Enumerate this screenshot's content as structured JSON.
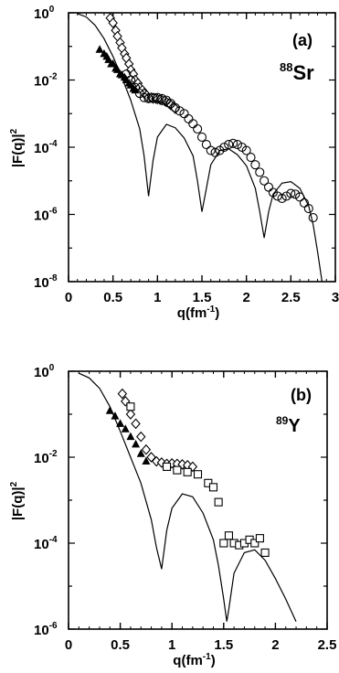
{
  "chart_data": [
    {
      "type": "scatter",
      "panel_label": "(a)",
      "nucleus": {
        "mass": "88",
        "symbol": "Sr"
      },
      "xlabel": {
        "main": "q(fm",
        "sup": "-1",
        "tail": ")"
      },
      "ylabel": {
        "main": "|F(q)|",
        "sup": "2"
      },
      "x_range": [
        0,
        3
      ],
      "y_scale": "log",
      "y_range_exp": [
        -8,
        0
      ],
      "x_ticks": [
        {
          "value": 0,
          "label": "0"
        },
        {
          "value": 0.5,
          "label": "0.5"
        },
        {
          "value": 1,
          "label": "1"
        },
        {
          "value": 1.5,
          "label": "1.5"
        },
        {
          "value": 2,
          "label": "2"
        },
        {
          "value": 2.5,
          "label": "2.5"
        },
        {
          "value": 3,
          "label": "3"
        }
      ],
      "y_ticks": [
        {
          "exp": 0,
          "label": "10",
          "sup": "0"
        },
        {
          "exp": -2,
          "label": "10",
          "sup": "-2"
        },
        {
          "exp": -4,
          "label": "10",
          "sup": "-4"
        },
        {
          "exp": -6,
          "label": "10",
          "sup": "-6"
        },
        {
          "exp": -8,
          "label": "10",
          "sup": "-8"
        }
      ],
      "curve": {
        "x": [
          0.1,
          0.2,
          0.3,
          0.4,
          0.5,
          0.6,
          0.7,
          0.8,
          0.85,
          0.9,
          0.95,
          1.0,
          1.1,
          1.2,
          1.3,
          1.4,
          1.45,
          1.5,
          1.55,
          1.6,
          1.7,
          1.8,
          1.9,
          2.0,
          2.1,
          2.15,
          2.2,
          2.25,
          2.3,
          2.4,
          2.5,
          2.6,
          2.7,
          2.75,
          2.8,
          2.85
        ],
        "y": [
          0.95,
          0.75,
          0.42,
          0.17,
          0.05,
          0.012,
          0.0025,
          0.00035,
          5.5e-05,
          3.5e-06,
          4e-05,
          0.0002,
          0.00048,
          0.00038,
          0.00019,
          5.5e-05,
          1e-05,
          1.2e-06,
          6e-06,
          3e-05,
          8e-05,
          9e-05,
          6e-05,
          2.8e-05,
          6e-06,
          1.2e-06,
          2e-07,
          1.2e-06,
          4e-06,
          8.5e-06,
          9.5e-06,
          6e-06,
          1.8e-06,
          5e-07,
          8e-08,
          1e-08
        ]
      },
      "series": [
        {
          "marker": "triangle",
          "x": [
            0.35,
            0.4,
            0.43,
            0.45,
            0.48,
            0.5,
            0.53,
            0.55,
            0.58,
            0.6,
            0.63,
            0.65,
            0.68,
            0.7,
            0.73,
            0.75
          ],
          "y": [
            0.08,
            0.06,
            0.05,
            0.04,
            0.03,
            0.03,
            0.022,
            0.02,
            0.015,
            0.014,
            0.012,
            0.01,
            0.008,
            0.007,
            0.0055,
            0.005
          ]
        },
        {
          "marker": "diamond",
          "x": [
            0.47,
            0.5,
            0.53,
            0.55,
            0.58,
            0.6,
            0.63,
            0.65,
            0.68,
            0.7,
            0.73,
            0.75,
            0.78,
            0.8,
            0.83,
            0.85,
            0.88,
            0.9,
            0.93,
            0.95,
            0.98,
            1.0,
            1.03,
            1.05,
            1.08,
            1.1,
            1.13,
            1.15,
            1.18,
            1.2
          ],
          "y": [
            0.7,
            0.5,
            0.3,
            0.2,
            0.13,
            0.09,
            0.06,
            0.045,
            0.03,
            0.02,
            0.015,
            0.01,
            0.008,
            0.006,
            0.005,
            0.004,
            0.0035,
            0.003,
            0.003,
            0.0028,
            0.0028,
            0.0027,
            0.0026,
            0.0025,
            0.0024,
            0.0022,
            0.002,
            0.0018,
            0.0016,
            0.0014
          ]
        },
        {
          "marker": "circle",
          "x": [
            0.65,
            0.7,
            0.75,
            0.8,
            0.85,
            0.9,
            0.95,
            1.0,
            1.05,
            1.1,
            1.15,
            1.2,
            1.25,
            1.3,
            1.35,
            1.4,
            1.45,
            1.5,
            1.55,
            1.6,
            1.65,
            1.7,
            1.75,
            1.8,
            1.85,
            1.9,
            1.95,
            2.0,
            2.05,
            2.1,
            2.15,
            2.2,
            2.25,
            2.3,
            2.35,
            2.4,
            2.45,
            2.5,
            2.55,
            2.6,
            2.65,
            2.7,
            2.75
          ],
          "y": [
            0.015,
            0.01,
            0.006,
            0.004,
            0.003,
            0.0028,
            0.003,
            0.003,
            0.0028,
            0.0025,
            0.002,
            0.0015,
            0.0012,
            0.001,
            0.0007,
            0.0005,
            0.00035,
            0.0002,
            0.00012,
            8e-05,
            7e-05,
            8e-05,
            0.0001,
            0.00012,
            0.00013,
            0.00012,
            0.0001,
            8e-05,
            5e-05,
            3e-05,
            1.8e-05,
            1e-05,
            6.5e-06,
            4.5e-06,
            3.5e-06,
            3e-06,
            3.5e-06,
            4.2e-06,
            4e-06,
            3.3e-06,
            2.2e-06,
            1.5e-06,
            8e-07
          ]
        }
      ]
    },
    {
      "type": "scatter",
      "panel_label": "(b)",
      "nucleus": {
        "mass": "89",
        "symbol": "Y"
      },
      "xlabel": {
        "main": "q(fm",
        "sup": "-1",
        "tail": ")"
      },
      "ylabel": {
        "main": "|F(q)|",
        "sup": "2"
      },
      "x_range": [
        0,
        2.5
      ],
      "y_scale": "log",
      "y_range_exp": [
        -6,
        0
      ],
      "x_ticks": [
        {
          "value": 0,
          "label": "0"
        },
        {
          "value": 0.5,
          "label": "0.5"
        },
        {
          "value": 1,
          "label": "1"
        },
        {
          "value": 1.5,
          "label": "1.5"
        },
        {
          "value": 2,
          "label": "2"
        },
        {
          "value": 2.5,
          "label": "2.5"
        }
      ],
      "y_ticks": [
        {
          "exp": 0,
          "label": "10",
          "sup": "0"
        },
        {
          "exp": -2,
          "label": "10",
          "sup": "-2"
        },
        {
          "exp": -4,
          "label": "10",
          "sup": "-4"
        },
        {
          "exp": -6,
          "label": "10",
          "sup": "-6"
        }
      ],
      "curve": {
        "x": [
          0.1,
          0.2,
          0.3,
          0.4,
          0.5,
          0.6,
          0.7,
          0.8,
          0.85,
          0.9,
          0.95,
          1.0,
          1.1,
          1.2,
          1.3,
          1.4,
          1.45,
          1.5,
          1.53,
          1.55,
          1.6,
          1.7,
          1.8,
          1.9,
          2.0,
          2.1,
          2.2
        ],
        "y": [
          0.9,
          0.7,
          0.4,
          0.15,
          0.04,
          0.01,
          0.0025,
          0.00035,
          8e-05,
          2.5e-05,
          0.0002,
          0.00065,
          0.0014,
          0.0012,
          0.0005,
          0.00012,
          3e-05,
          5e-06,
          1.5e-06,
          3e-06,
          2e-05,
          6e-05,
          7e-05,
          4e-05,
          1.5e-05,
          5e-06,
          1.5e-06
        ]
      },
      "series": [
        {
          "marker": "triangle",
          "x": [
            0.4,
            0.45,
            0.5,
            0.55,
            0.6,
            0.65,
            0.7,
            0.75
          ],
          "y": [
            0.12,
            0.09,
            0.06,
            0.045,
            0.03,
            0.02,
            0.012,
            0.008
          ]
        },
        {
          "marker": "diamond",
          "x": [
            0.52,
            0.55,
            0.6,
            0.65,
            0.7,
            0.75,
            0.8,
            0.85,
            0.9,
            0.95,
            1.0,
            1.05,
            1.1,
            1.15,
            1.2
          ],
          "y": [
            0.3,
            0.2,
            0.1,
            0.06,
            0.03,
            0.015,
            0.01,
            0.008,
            0.0075,
            0.007,
            0.0072,
            0.007,
            0.0068,
            0.0065,
            0.006
          ]
        },
        {
          "marker": "square",
          "x": [
            0.6,
            0.95,
            1.05,
            1.15,
            1.25,
            1.35,
            1.4,
            1.45,
            1.5,
            1.55,
            1.6,
            1.65,
            1.7,
            1.75,
            1.8,
            1.85,
            1.9
          ],
          "y": [
            0.15,
            0.006,
            0.005,
            0.0045,
            0.004,
            0.0025,
            0.002,
            0.0009,
            0.0001,
            0.00015,
            0.0001,
            9e-05,
            0.0001,
            0.00012,
            0.0001,
            0.00013,
            6e-05
          ]
        }
      ]
    }
  ]
}
